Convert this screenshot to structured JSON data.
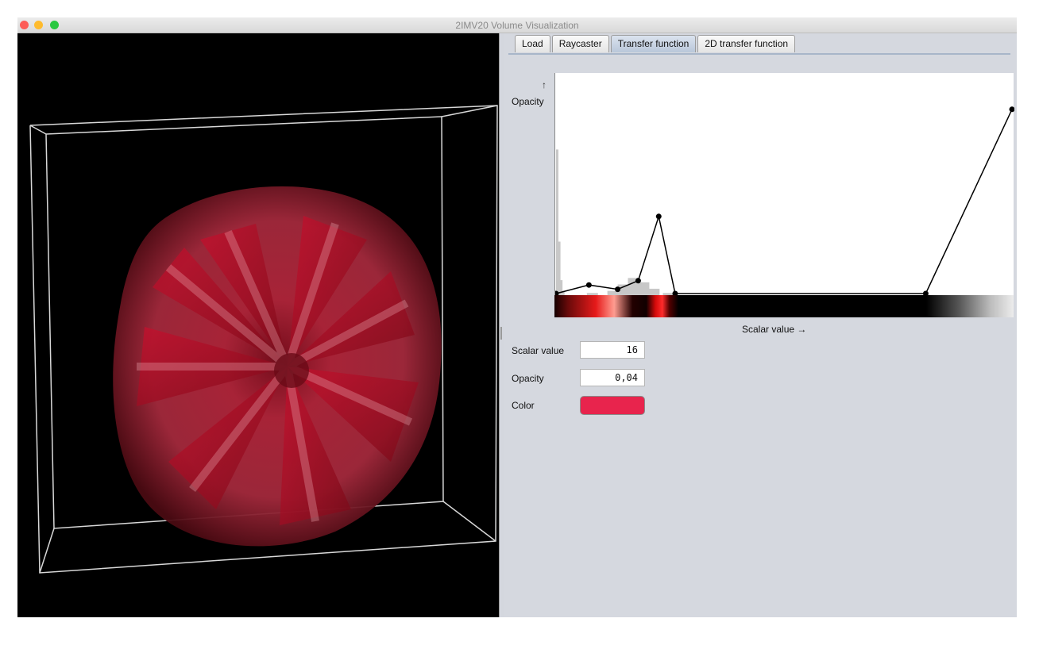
{
  "window": {
    "title": "2IMV20 Volume Visualization"
  },
  "tabs": [
    {
      "label": "Load",
      "active": false
    },
    {
      "label": "Raycaster",
      "active": false
    },
    {
      "label": "Transfer function",
      "active": true
    },
    {
      "label": "2D transfer function",
      "active": false
    }
  ],
  "transfer_function": {
    "y_axis_arrow": "↑",
    "y_axis_label": "Opacity",
    "x_axis_label": "Scalar value →",
    "curve_color": "#000000",
    "histogram_color": "#c8c8c8",
    "control_points": [
      {
        "scalar": 0,
        "opacity": 0.0
      },
      {
        "scalar": 16,
        "opacity": 0.04
      },
      {
        "scalar": 30,
        "opacity": 0.02
      },
      {
        "scalar": 40,
        "opacity": 0.06
      },
      {
        "scalar": 50,
        "opacity": 0.36
      },
      {
        "scalar": 58,
        "opacity": 0.0
      },
      {
        "scalar": 180,
        "opacity": 0.0
      },
      {
        "scalar": 222,
        "opacity": 0.86
      }
    ],
    "scalar_max": 222,
    "histogram": [
      {
        "scalar": 0,
        "count": 0.68
      },
      {
        "scalar": 1,
        "count": 0.25
      },
      {
        "scalar": 2,
        "count": 0.07
      },
      {
        "scalar": 3,
        "count": 0.02
      },
      {
        "scalar": 15,
        "count": 0.01
      },
      {
        "scalar": 25,
        "count": 0.02
      },
      {
        "scalar": 30,
        "count": 0.05
      },
      {
        "scalar": 35,
        "count": 0.08
      },
      {
        "scalar": 40,
        "count": 0.06
      },
      {
        "scalar": 45,
        "count": 0.03
      },
      {
        "scalar": 52,
        "count": 0.01
      }
    ]
  },
  "fields": {
    "scalar_value_label": "Scalar value",
    "scalar_value": "16",
    "opacity_label": "Opacity",
    "opacity_value": "0,04",
    "color_label": "Color",
    "color_value": "#e8244d"
  }
}
